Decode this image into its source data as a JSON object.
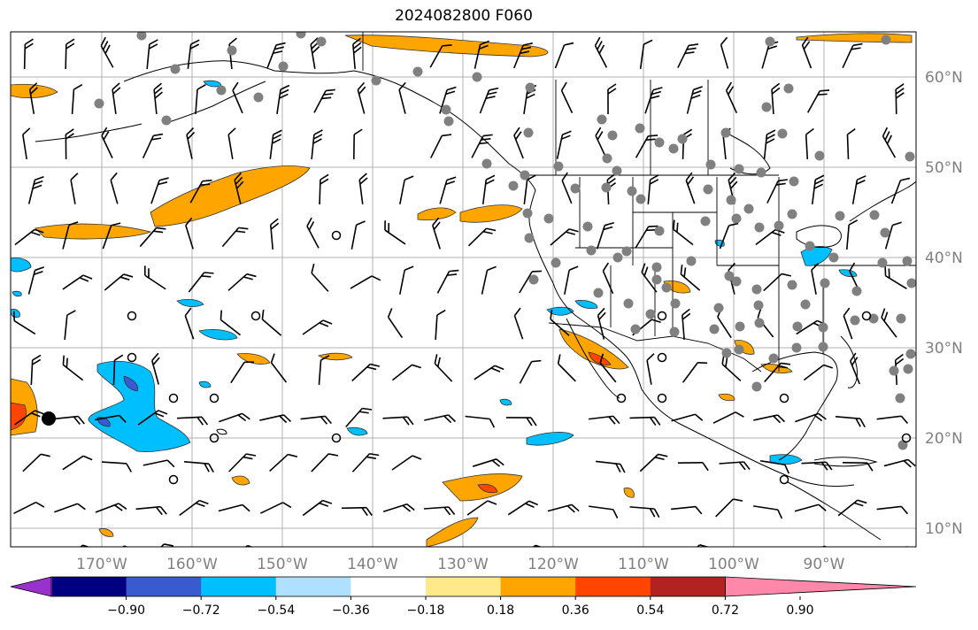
{
  "title": "2024082800 F060",
  "map": {
    "lon_labels": [
      "170°W",
      "160°W",
      "150°W",
      "140°W",
      "130°W",
      "120°W",
      "110°W",
      "100°W",
      "90°W"
    ],
    "lat_labels": [
      "60°N",
      "50°N",
      "40°N",
      "30°N",
      "20°N",
      "10°N"
    ],
    "label_color": "#808080",
    "grid_color": "#b0b0b0"
  },
  "colorbar": {
    "colors": [
      "#9932cc",
      "#000080",
      "#3a5bcf",
      "#00bfff",
      "#b0e0ff",
      "#ffffff",
      "#ffe98a",
      "#ffa500",
      "#ff4500",
      "#b22222",
      "#ff88aa"
    ],
    "tick_labels": [
      "−0.90",
      "−0.72",
      "−0.54",
      "−0.36",
      "−0.18",
      "0.18",
      "0.36",
      "0.54",
      "0.72",
      "0.90"
    ]
  },
  "legend_symbols": {
    "station_dot_color": "#808080",
    "open_circle": "calm wind"
  }
}
